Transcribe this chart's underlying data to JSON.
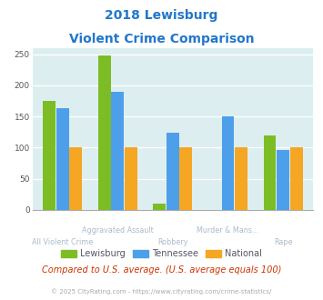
{
  "title_line1": "2018 Lewisburg",
  "title_line2": "Violent Crime Comparison",
  "categories": [
    "All Violent Crime",
    "Aggravated Assault",
    "Robbery",
    "Murder & Mans...",
    "Rape"
  ],
  "lewisburg": [
    175,
    248,
    10,
    0,
    120
  ],
  "tennessee": [
    163,
    190,
    124,
    150,
    97
  ],
  "national": [
    100,
    100,
    100,
    100,
    100
  ],
  "colors": {
    "lewisburg": "#7cbd25",
    "tennessee": "#4d9fea",
    "national": "#f5a623"
  },
  "ylim": [
    0,
    260
  ],
  "yticks": [
    0,
    50,
    100,
    150,
    200,
    250
  ],
  "background_color": "#ddeef0",
  "title_color": "#2277cc",
  "xlabel_color": "#aabbcc",
  "footer_text": "Compared to U.S. average. (U.S. average equals 100)",
  "copyright_text": "© 2025 CityRating.com - https://www.cityrating.com/crime-statistics/",
  "footer_color": "#cc3300",
  "copyright_color": "#aaaaaa",
  "legend_text_color": "#555566"
}
